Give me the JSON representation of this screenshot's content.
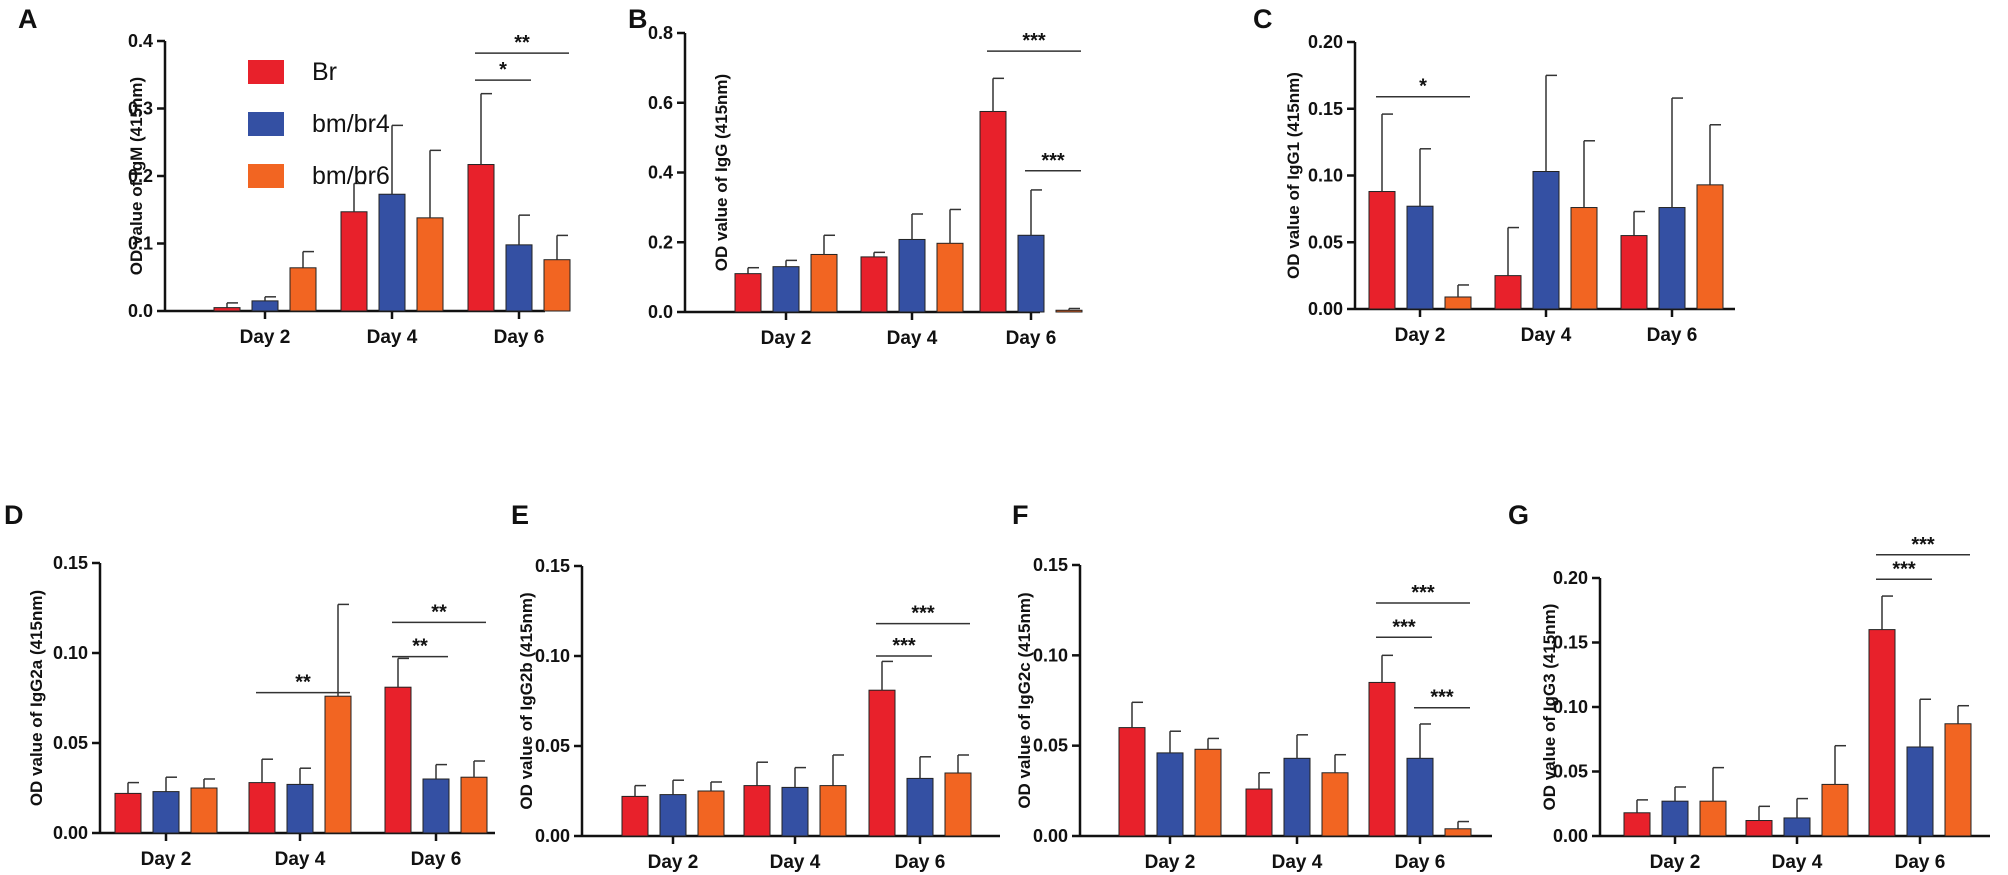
{
  "legend": {
    "items": [
      {
        "label": "Br",
        "color": "#e8212b"
      },
      {
        "label": "bm/br4",
        "color": "#3450a3"
      },
      {
        "label": "bm/br6",
        "color": "#f26522"
      }
    ]
  },
  "chart_data": [
    {
      "type": "bar",
      "panel_label": "A",
      "ylabel": "OD value of IgM (415nm)",
      "categories": [
        "Day 2",
        "Day 4",
        "Day 6"
      ],
      "ylim": [
        0,
        0.4
      ],
      "yticks": [
        "0.0",
        "0.1",
        "0.2",
        "0.3",
        "0.4"
      ],
      "series": [
        {
          "name": "Br",
          "values": [
            0.005,
            0.147,
            0.217
          ],
          "errors": [
            0.007,
            0.042,
            0.105
          ]
        },
        {
          "name": "bm/br4",
          "values": [
            0.015,
            0.173,
            0.098
          ],
          "errors": [
            0.006,
            0.102,
            0.044
          ]
        },
        {
          "name": "bm/br6",
          "values": [
            0.064,
            0.138,
            0.076
          ],
          "errors": [
            0.024,
            0.1,
            0.036
          ]
        }
      ],
      "annotations": [
        {
          "text": "*",
          "category": 2,
          "from": 0,
          "to": 1,
          "y": 0.342
        },
        {
          "text": "**",
          "category": 2,
          "from": 0,
          "to": 2,
          "y": 0.382
        }
      ]
    },
    {
      "type": "bar",
      "panel_label": "B",
      "ylabel": "OD value of IgG (415nm)",
      "categories": [
        "Day 2",
        "Day 4",
        "Day 6"
      ],
      "ylim": [
        0,
        0.8
      ],
      "yticks": [
        "0.0",
        "0.2",
        "0.4",
        "0.6",
        "0.8"
      ],
      "series": [
        {
          "name": "Br",
          "values": [
            0.11,
            0.158,
            0.575
          ],
          "errors": [
            0.017,
            0.013,
            0.095
          ]
        },
        {
          "name": "bm/br4",
          "values": [
            0.13,
            0.208,
            0.22
          ],
          "errors": [
            0.018,
            0.073,
            0.13
          ]
        },
        {
          "name": "bm/br6",
          "values": [
            0.165,
            0.197,
            0.005
          ],
          "errors": [
            0.055,
            0.097,
            0.005
          ]
        }
      ],
      "annotations": [
        {
          "text": "***",
          "category": 2,
          "from": 0,
          "to": 2,
          "y": 0.748
        },
        {
          "text": "***",
          "category": 2,
          "from": 1,
          "to": 2,
          "y": 0.405
        }
      ]
    },
    {
      "type": "bar",
      "panel_label": "C",
      "ylabel": "OD value of IgG1 (415nm)",
      "categories": [
        "Day 2",
        "Day 4",
        "Day 6"
      ],
      "ylim": [
        0,
        0.2
      ],
      "yticks": [
        "0.00",
        "0.05",
        "0.10",
        "0.15",
        "0.20"
      ],
      "series": [
        {
          "name": "Br",
          "values": [
            0.088,
            0.025,
            0.055
          ],
          "errors": [
            0.058,
            0.036,
            0.018
          ]
        },
        {
          "name": "bm/br4",
          "values": [
            0.077,
            0.103,
            0.076
          ],
          "errors": [
            0.043,
            0.072,
            0.082
          ]
        },
        {
          "name": "bm/br6",
          "values": [
            0.009,
            0.076,
            0.093
          ],
          "errors": [
            0.009,
            0.05,
            0.045
          ]
        }
      ],
      "annotations": [
        {
          "text": "*",
          "category": 0,
          "from": 0,
          "to": 2,
          "y": 0.159
        }
      ]
    },
    {
      "type": "bar",
      "panel_label": "D",
      "ylabel": "OD value of IgG2a (415nm)",
      "categories": [
        "Day 2",
        "Day 4",
        "Day 6"
      ],
      "ylim": [
        0,
        0.15
      ],
      "yticks": [
        "0.00",
        "0.05",
        "0.10",
        "0.15"
      ],
      "series": [
        {
          "name": "Br",
          "values": [
            0.022,
            0.028,
            0.081
          ],
          "errors": [
            0.006,
            0.013,
            0.016
          ]
        },
        {
          "name": "bm/br4",
          "values": [
            0.023,
            0.027,
            0.03
          ],
          "errors": [
            0.008,
            0.009,
            0.008
          ]
        },
        {
          "name": "bm/br6",
          "values": [
            0.025,
            0.076,
            0.031
          ],
          "errors": [
            0.005,
            0.051,
            0.009
          ]
        }
      ],
      "annotations": [
        {
          "text": "**",
          "category": 1,
          "from": 0,
          "to": 2,
          "y": 0.078
        },
        {
          "text": "**",
          "category": 2,
          "from": 0,
          "to": 1,
          "y": 0.098
        },
        {
          "text": "**",
          "category": 2,
          "from": 0,
          "to": 2,
          "y": 0.117
        }
      ]
    },
    {
      "type": "bar",
      "panel_label": "E",
      "ylabel": "OD value of IgG2b (415nm)",
      "categories": [
        "Day 2",
        "Day 4",
        "Day 6"
      ],
      "ylim": [
        0,
        0.15
      ],
      "yticks": [
        "0.00",
        "0.05",
        "0.10",
        "0.15"
      ],
      "series": [
        {
          "name": "Br",
          "values": [
            0.022,
            0.028,
            0.081
          ],
          "errors": [
            0.006,
            0.013,
            0.016
          ]
        },
        {
          "name": "bm/br4",
          "values": [
            0.023,
            0.027,
            0.032
          ],
          "errors": [
            0.008,
            0.011,
            0.012
          ]
        },
        {
          "name": "bm/br6",
          "values": [
            0.025,
            0.028,
            0.035
          ],
          "errors": [
            0.005,
            0.017,
            0.01
          ]
        }
      ],
      "annotations": [
        {
          "text": "***",
          "category": 2,
          "from": 0,
          "to": 1,
          "y": 0.1
        },
        {
          "text": "***",
          "category": 2,
          "from": 0,
          "to": 2,
          "y": 0.118
        }
      ]
    },
    {
      "type": "bar",
      "panel_label": "F",
      "ylabel": "OD value of IgG2c (415nm)",
      "categories": [
        "Day 2",
        "Day 4",
        "Day 6"
      ],
      "ylim": [
        0,
        0.15
      ],
      "yticks": [
        "0.00",
        "0.05",
        "0.10",
        "0.15"
      ],
      "series": [
        {
          "name": "Br",
          "values": [
            0.06,
            0.026,
            0.085
          ],
          "errors": [
            0.014,
            0.009,
            0.015
          ]
        },
        {
          "name": "bm/br4",
          "values": [
            0.046,
            0.043,
            0.043
          ],
          "errors": [
            0.012,
            0.013,
            0.019
          ]
        },
        {
          "name": "bm/br6",
          "values": [
            0.048,
            0.035,
            0.004
          ],
          "errors": [
            0.006,
            0.01,
            0.004
          ]
        }
      ],
      "annotations": [
        {
          "text": "***",
          "category": 2,
          "from": 0,
          "to": 1,
          "y": 0.11
        },
        {
          "text": "***",
          "category": 2,
          "from": 0,
          "to": 2,
          "y": 0.129
        },
        {
          "text": "***",
          "category": 2,
          "from": 1,
          "to": 2,
          "y": 0.071
        }
      ]
    },
    {
      "type": "bar",
      "panel_label": "G",
      "ylabel": "OD value of IgG3 (415nm)",
      "categories": [
        "Day 2",
        "Day 4",
        "Day 6"
      ],
      "ylim": [
        0,
        0.2
      ],
      "yticks": [
        "0.00",
        "0.05",
        "0.10",
        "0.15",
        "0.20"
      ],
      "series": [
        {
          "name": "Br",
          "values": [
            0.018,
            0.012,
            0.16
          ],
          "errors": [
            0.01,
            0.011,
            0.026
          ]
        },
        {
          "name": "bm/br4",
          "values": [
            0.027,
            0.014,
            0.069
          ],
          "errors": [
            0.011,
            0.015,
            0.037
          ]
        },
        {
          "name": "bm/br6",
          "values": [
            0.027,
            0.04,
            0.087
          ],
          "errors": [
            0.026,
            0.03,
            0.014
          ]
        }
      ],
      "annotations": [
        {
          "text": "***",
          "category": 2,
          "from": 0,
          "to": 1,
          "y": 0.199
        },
        {
          "text": "***",
          "category": 2,
          "from": 0,
          "to": 2,
          "y": 0.218
        }
      ]
    }
  ]
}
